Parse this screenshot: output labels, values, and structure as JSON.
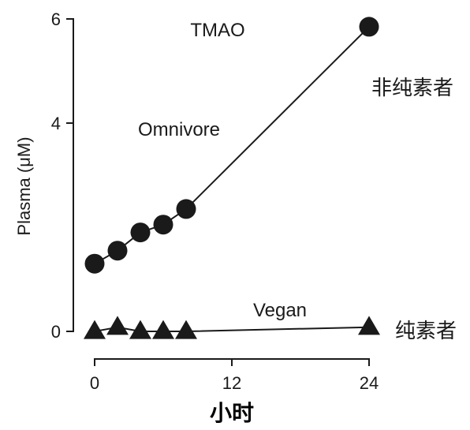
{
  "chart_data": {
    "type": "line",
    "title": "",
    "xlabel": "小时",
    "ylabel": "Plasma (μM)",
    "xlim": [
      0,
      24
    ],
    "ylim": [
      0,
      6
    ],
    "xticks": [
      0,
      12,
      24
    ],
    "yticks": [
      0,
      4,
      6
    ],
    "grid": false,
    "annotations": {
      "tmao": "TMAO",
      "omnivore": "Omnivore",
      "vegan": "Vegan",
      "omnivore_cn": "非纯素者",
      "vegan_cn": "纯素者"
    },
    "series": [
      {
        "marker": "circle",
        "x": [
          0,
          2,
          4,
          6,
          8,
          24
        ],
        "y": [
          1.3,
          1.55,
          1.9,
          2.05,
          2.35,
          5.85
        ]
      },
      {
        "marker": "triangle",
        "x": [
          0,
          2,
          4,
          6,
          8,
          24
        ],
        "y": [
          0.0,
          0.08,
          0.0,
          0.0,
          0.0,
          0.08
        ]
      }
    ],
    "colors": {
      "marker": "#1a1a1a",
      "line": "#1a1a1a"
    }
  }
}
